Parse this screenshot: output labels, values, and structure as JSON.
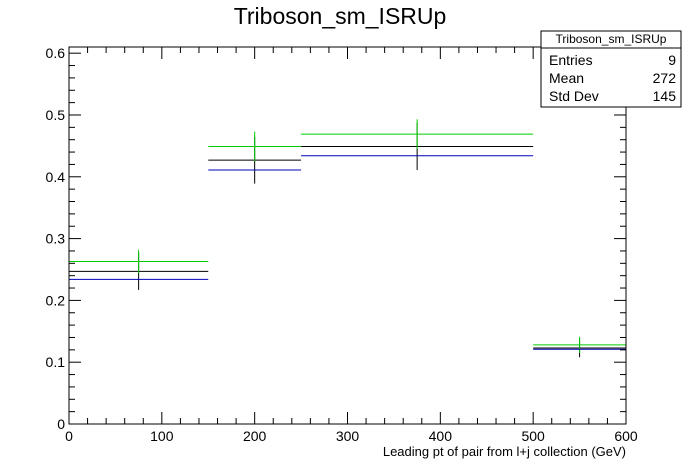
{
  "chart_data": {
    "type": "step-histogram",
    "title": "Triboson_sm_ISRUp",
    "xlabel": "Leading pt of pair from l+j collection (GeV)",
    "ylabel": "",
    "xlim": [
      0,
      600
    ],
    "ylim": [
      0,
      0.61
    ],
    "x_ticks": [
      0,
      100,
      200,
      300,
      400,
      500,
      600
    ],
    "x_tick_labels": [
      "0",
      "100",
      "200",
      "300",
      "400",
      "500",
      "600"
    ],
    "y_ticks": [
      0,
      0.1,
      0.2,
      0.3,
      0.4,
      0.5,
      0.6
    ],
    "y_tick_labels": [
      "0",
      "0.1",
      "0.2",
      "0.3",
      "0.4",
      "0.5",
      "0.6"
    ],
    "grid": false,
    "bin_edges": [
      [
        0,
        150
      ],
      [
        150,
        250
      ],
      [
        250,
        500
      ],
      [
        500,
        600
      ]
    ],
    "bin_centers": [
      75,
      200,
      375,
      550
    ],
    "series": [
      {
        "color": "#000000",
        "values": [
          0.247,
          0.427,
          0.449,
          0.123
        ],
        "errors": [
          0.03,
          0.038,
          0.038,
          0.015
        ]
      },
      {
        "color": "#00cc00",
        "values": [
          0.263,
          0.449,
          0.469,
          0.128
        ],
        "errors": [
          0.019,
          0.024,
          0.024,
          0.013
        ]
      },
      {
        "color": "#0000bb",
        "values": [
          0.234,
          0.411,
          0.434,
          0.121
        ],
        "errors": [
          0,
          0,
          0,
          0
        ]
      }
    ],
    "stats_box": {
      "title": "Triboson_sm_ISRUp",
      "rows": [
        {
          "label": "Entries",
          "value": "9"
        },
        {
          "label": "Mean",
          "value": "272"
        },
        {
          "label": "Std Dev",
          "value": "145"
        }
      ],
      "position": "top-right"
    }
  }
}
